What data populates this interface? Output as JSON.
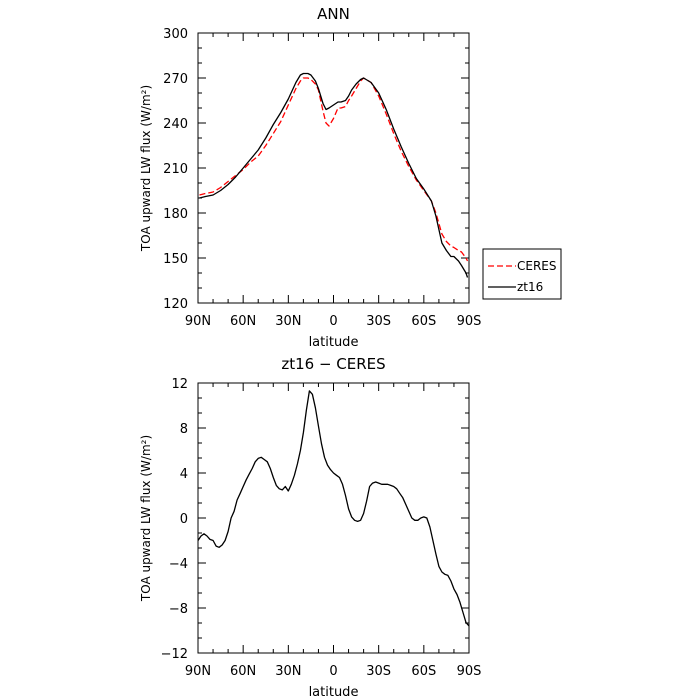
{
  "chart_data": [
    {
      "type": "line",
      "title": "ANN",
      "xlabel": "latitude",
      "ylabel": "TOA upward LW flux (W/m²)",
      "xlim": [
        90,
        -90
      ],
      "ylim": [
        120,
        300
      ],
      "xticks": [
        {
          "value": 90,
          "label": "90N"
        },
        {
          "value": 60,
          "label": "60N"
        },
        {
          "value": 30,
          "label": "30N"
        },
        {
          "value": 0,
          "label": "0"
        },
        {
          "value": -30,
          "label": "30S"
        },
        {
          "value": -60,
          "label": "60S"
        },
        {
          "value": -90,
          "label": "90S"
        }
      ],
      "yticks": [
        120,
        150,
        180,
        210,
        240,
        270,
        300
      ],
      "grid": false,
      "legend": "right",
      "series": [
        {
          "name": "CERES",
          "color": "#ff0000",
          "dash": "dashed",
          "x": [
            89,
            85,
            80,
            75,
            70,
            65,
            60,
            55,
            50,
            45,
            40,
            35,
            30,
            25,
            22,
            20,
            17,
            15,
            12,
            10,
            7,
            5,
            3,
            0,
            -3,
            -5,
            -8,
            -10,
            -12,
            -15,
            -18,
            -20,
            -25,
            -30,
            -35,
            -40,
            -45,
            -50,
            -55,
            -60,
            -65,
            -68,
            -70,
            -72,
            -75,
            -78,
            -80,
            -83,
            -85,
            -88,
            -89
          ],
          "y": [
            192,
            193,
            194,
            197,
            201,
            205,
            209,
            214,
            218,
            225,
            233,
            241,
            252,
            263,
            268,
            270,
            270,
            269,
            266,
            262,
            248,
            240,
            238,
            243,
            250,
            250,
            251,
            255,
            258,
            263,
            268,
            270,
            267,
            258,
            246,
            233,
            221,
            211,
            202,
            195,
            188,
            180,
            173,
            166,
            161,
            158,
            157,
            155,
            154,
            150,
            148
          ]
        },
        {
          "name": "zt16",
          "color": "#000000",
          "dash": "solid",
          "x": [
            89,
            85,
            80,
            75,
            70,
            65,
            60,
            55,
            50,
            45,
            40,
            35,
            30,
            25,
            22,
            20,
            17,
            15,
            12,
            10,
            7,
            5,
            3,
            0,
            -3,
            -5,
            -8,
            -10,
            -12,
            -15,
            -18,
            -20,
            -25,
            -30,
            -35,
            -40,
            -45,
            -50,
            -55,
            -60,
            -65,
            -68,
            -70,
            -72,
            -75,
            -78,
            -80,
            -83,
            -85,
            -88,
            -89
          ],
          "y": [
            190,
            191,
            192,
            195,
            199,
            204,
            210,
            216,
            222,
            230,
            239,
            247,
            256,
            267,
            272,
            273,
            273,
            272,
            268,
            263,
            253,
            249,
            250,
            252,
            254,
            254,
            255,
            258,
            262,
            266,
            269,
            270,
            267,
            260,
            249,
            236,
            224,
            213,
            203,
            196,
            188,
            178,
            169,
            160,
            155,
            151,
            151,
            148,
            145,
            140,
            137
          ]
        }
      ]
    },
    {
      "type": "line",
      "title": "zt16 − CERES",
      "xlabel": "latitude",
      "ylabel": "TOA upward LW flux (W/m²)",
      "xlim": [
        90,
        -90
      ],
      "ylim": [
        -12,
        12
      ],
      "xticks": [
        {
          "value": 90,
          "label": "90N"
        },
        {
          "value": 60,
          "label": "60N"
        },
        {
          "value": 30,
          "label": "30N"
        },
        {
          "value": 0,
          "label": "0"
        },
        {
          "value": -30,
          "label": "30S"
        },
        {
          "value": -60,
          "label": "60S"
        },
        {
          "value": -90,
          "label": "90S"
        }
      ],
      "yticks": [
        -12,
        -8,
        -4,
        0,
        4,
        8,
        12
      ],
      "grid": false,
      "series": [
        {
          "color": "#000000",
          "dash": "solid",
          "x": [
            90,
            88,
            86,
            84,
            82,
            80,
            78,
            76,
            74,
            72,
            70,
            68,
            66,
            64,
            62,
            60,
            58,
            56,
            54,
            52,
            50,
            48,
            46,
            44,
            42,
            40,
            38,
            36,
            34,
            32,
            30,
            28,
            26,
            24,
            22,
            20,
            18,
            16,
            14,
            12,
            10,
            8,
            6,
            4,
            2,
            0,
            -2,
            -4,
            -6,
            -8,
            -10,
            -12,
            -14,
            -16,
            -18,
            -20,
            -22,
            -24,
            -26,
            -28,
            -30,
            -32,
            -34,
            -36,
            -38,
            -40,
            -42,
            -44,
            -46,
            -48,
            -50,
            -52,
            -54,
            -56,
            -58,
            -60,
            -62,
            -64,
            -66,
            -68,
            -70,
            -72,
            -74,
            -76,
            -78,
            -80,
            -82,
            -84,
            -86,
            -88,
            -90
          ],
          "y": [
            -2.0,
            -1.6,
            -1.4,
            -1.6,
            -1.9,
            -2.0,
            -2.5,
            -2.6,
            -2.4,
            -2.0,
            -1.2,
            0.0,
            0.6,
            1.6,
            2.2,
            2.8,
            3.4,
            3.9,
            4.4,
            5.0,
            5.3,
            5.4,
            5.2,
            5.0,
            4.4,
            3.6,
            2.9,
            2.6,
            2.5,
            2.8,
            2.4,
            3.0,
            3.8,
            4.8,
            6.0,
            7.6,
            9.6,
            11.3,
            11.0,
            9.8,
            8.2,
            6.6,
            5.4,
            4.7,
            4.3,
            4.0,
            3.8,
            3.6,
            3.0,
            2.0,
            0.8,
            0.1,
            -0.2,
            -0.3,
            -0.2,
            0.4,
            1.5,
            2.8,
            3.1,
            3.2,
            3.1,
            3.0,
            3.0,
            3.0,
            2.9,
            2.8,
            2.6,
            2.2,
            1.8,
            1.2,
            0.6,
            0.0,
            -0.2,
            -0.2,
            0.0,
            0.1,
            0.0,
            -0.8,
            -2.0,
            -3.2,
            -4.3,
            -4.8,
            -5.0,
            -5.1,
            -5.6,
            -6.3,
            -6.8,
            -7.5,
            -8.4,
            -9.3,
            -9.6
          ]
        }
      ]
    }
  ]
}
